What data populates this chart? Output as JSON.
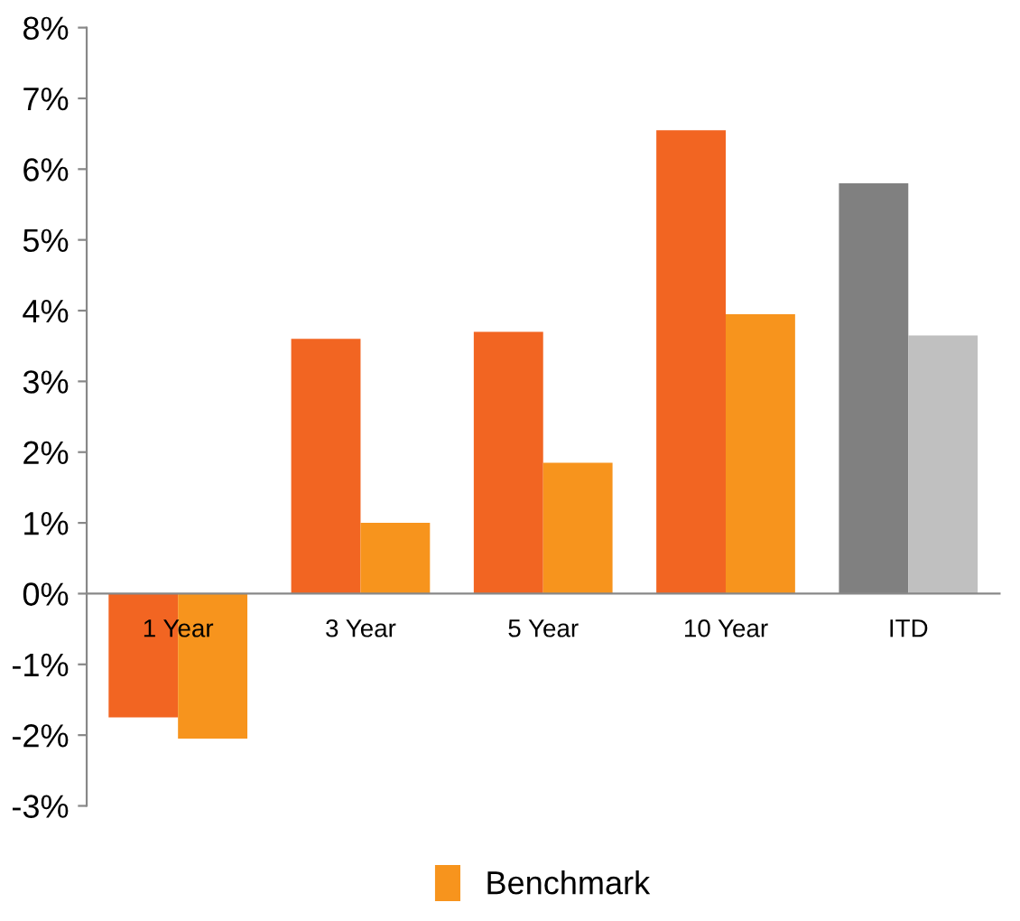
{
  "chart_data": {
    "type": "bar",
    "categories": [
      "1 Year",
      "3 Year",
      "5 Year",
      "10 Year",
      "ITD"
    ],
    "series": [
      {
        "color": "#f26522",
        "colors": [
          "#f26522",
          "#f26522",
          "#f26522",
          "#f26522",
          "#808080"
        ],
        "values": [
          -1.75,
          3.6,
          3.7,
          6.55,
          5.8
        ]
      },
      {
        "name": "Benchmark",
        "color": "#f7941d",
        "colors": [
          "#f7941d",
          "#f7941d",
          "#f7941d",
          "#f7941d",
          "#c0c0c0"
        ],
        "values": [
          -2.05,
          1.0,
          1.85,
          3.95,
          3.65
        ]
      }
    ],
    "ylim": [
      -3,
      8
    ],
    "yticks": [
      {
        "value": -3,
        "label": "-3%"
      },
      {
        "value": -2,
        "label": "-2%"
      },
      {
        "value": -1,
        "label": "-1%"
      },
      {
        "value": 0,
        "label": "0%"
      },
      {
        "value": 1,
        "label": "1%"
      },
      {
        "value": 2,
        "label": "2%"
      },
      {
        "value": 3,
        "label": "3%"
      },
      {
        "value": 4,
        "label": "4%"
      },
      {
        "value": 5,
        "label": "5%"
      },
      {
        "value": 6,
        "label": "6%"
      },
      {
        "value": 7,
        "label": "7%"
      },
      {
        "value": 8,
        "label": "8%"
      }
    ],
    "grid": false,
    "legend": "bottom"
  }
}
